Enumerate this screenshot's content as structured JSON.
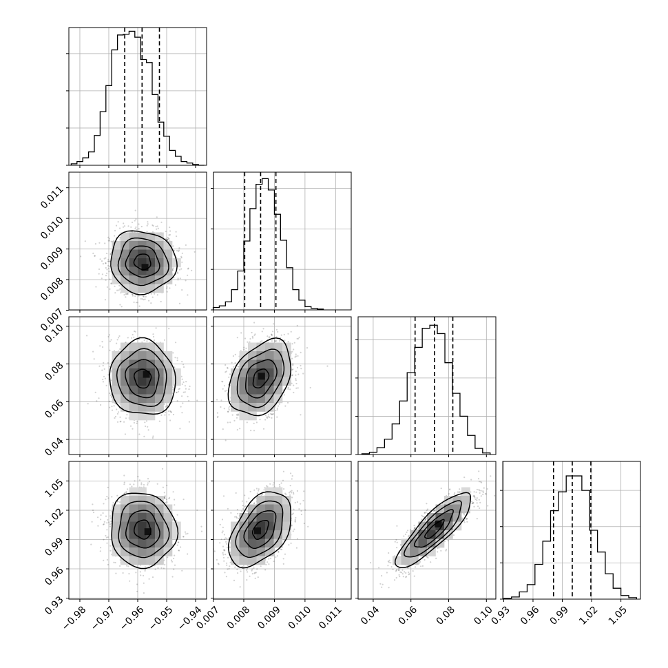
{
  "chart_data": {
    "type": "corner",
    "grid": true,
    "colors": {
      "line": "#000000",
      "grid": "#b0b0b0",
      "scatter": "#000000"
    },
    "parameters": [
      {
        "ticks": [
          -0.98,
          -0.97,
          -0.96,
          -0.95,
          -0.94
        ],
        "tick_labels": [
          "−0.98",
          "−0.97",
          "−0.96",
          "−0.95",
          "−0.94"
        ],
        "range": [
          -0.9838,
          -0.9362
        ]
      },
      {
        "ticks": [
          0.007,
          0.008,
          0.009,
          0.01,
          0.011
        ],
        "tick_labels": [
          "0.007",
          "0.008",
          "0.009",
          "0.010",
          "0.011"
        ],
        "range": [
          0.00701,
          0.01151
        ]
      },
      {
        "ticks": [
          0.04,
          0.06,
          0.08,
          0.1
        ],
        "tick_labels": [
          "0.04",
          "0.06",
          "0.08",
          "0.10"
        ],
        "range": [
          0.032,
          0.105
        ]
      },
      {
        "ticks": [
          0.93,
          0.96,
          0.99,
          1.02,
          1.05
        ],
        "tick_labels": [
          "0.93",
          "0.96",
          "0.99",
          "1.02",
          "1.05"
        ],
        "range": [
          0.929,
          1.07
        ]
      }
    ],
    "marginals": [
      {
        "param": 0,
        "bin_edges": [
          -0.983,
          -0.981,
          -0.979,
          -0.977,
          -0.975,
          -0.973,
          -0.971,
          -0.969,
          -0.967,
          -0.965,
          -0.963,
          -0.961,
          -0.959,
          -0.957,
          -0.955,
          -0.953,
          -0.951,
          -0.949,
          -0.947,
          -0.945,
          -0.943,
          -0.941,
          -0.939,
          -0.937
        ],
        "counts": [
          2,
          5,
          10,
          18,
          40,
          72,
          107,
          155,
          175,
          176,
          180,
          172,
          142,
          138,
          95,
          58,
          39,
          20,
          12,
          5,
          3,
          1,
          0
        ],
        "ylim": [
          0,
          185
        ],
        "yticks": [
          0,
          50,
          100,
          150
        ],
        "quantiles": [
          -0.9645,
          -0.9585,
          -0.9525
        ]
      },
      {
        "param": 1,
        "bin_edges": [
          0.007,
          0.0072,
          0.0074,
          0.0076,
          0.0078,
          0.008,
          0.0082,
          0.0084,
          0.0086,
          0.0088,
          0.009,
          0.0092,
          0.0094,
          0.0096,
          0.0098,
          0.01,
          0.0102,
          0.0104,
          0.0106
        ],
        "counts": [
          3,
          5,
          10,
          25,
          48,
          85,
          125,
          155,
          162,
          148,
          118,
          86,
          52,
          25,
          12,
          4,
          2,
          1
        ],
        "ylim": [
          0,
          170
        ],
        "yticks": [
          0,
          50,
          100,
          150
        ],
        "quantiles": [
          0.00803,
          0.00855,
          0.00905
        ]
      },
      {
        "param": 2,
        "bin_edges": [
          0.034,
          0.038,
          0.042,
          0.046,
          0.05,
          0.054,
          0.058,
          0.062,
          0.066,
          0.07,
          0.074,
          0.078,
          0.082,
          0.086,
          0.09,
          0.094,
          0.098,
          0.102
        ],
        "counts": [
          1,
          3,
          9,
          20,
          40,
          70,
          107,
          140,
          165,
          169,
          158,
          120,
          80,
          50,
          25,
          8,
          2
        ],
        "ylim": [
          0,
          180
        ],
        "yticks": [
          0,
          50,
          100,
          150
        ],
        "quantiles": [
          0.0622,
          0.0725,
          0.0822
        ]
      },
      {
        "param": 3,
        "bin_edges": [
          0.93,
          0.938,
          0.946,
          0.954,
          0.962,
          0.97,
          0.978,
          0.986,
          0.994,
          1.002,
          1.01,
          1.018,
          1.026,
          1.034,
          1.042,
          1.05,
          1.058,
          1.066
        ],
        "counts": [
          1,
          3,
          10,
          20,
          48,
          80,
          122,
          148,
          170,
          170,
          150,
          95,
          65,
          35,
          15,
          5,
          2
        ],
        "ylim": [
          0,
          190
        ],
        "yticks": [
          0,
          50,
          100,
          150
        ],
        "quantiles": [
          0.981,
          1.0002,
          1.0192
        ]
      }
    ],
    "joint": [
      {
        "x": 0,
        "y": 1,
        "mean": [
          -0.9583,
          0.00858
        ],
        "sd": [
          0.0057,
          0.00051
        ],
        "corr": -0.05,
        "peak": [
          -0.9575,
          0.0084
        ]
      },
      {
        "x": 0,
        "y": 2,
        "mean": [
          -0.9583,
          0.0723
        ],
        "sd": [
          0.0057,
          0.01
        ],
        "corr": -0.05,
        "peak": [
          -0.957,
          0.0745
        ]
      },
      {
        "x": 1,
        "y": 2,
        "mean": [
          0.00855,
          0.0724
        ],
        "sd": [
          0.00051,
          0.01
        ],
        "corr": 0.35,
        "peak": [
          0.00858,
          0.0735
        ]
      },
      {
        "x": 0,
        "y": 3,
        "mean": [
          -0.9583,
          1.0002
        ],
        "sd": [
          0.0057,
          0.0192
        ],
        "corr": -0.05,
        "peak": [
          -0.9565,
          0.998
        ]
      },
      {
        "x": 1,
        "y": 3,
        "mean": [
          0.00855,
          1.0002
        ],
        "sd": [
          0.00051,
          0.0192
        ],
        "corr": 0.45,
        "peak": [
          0.00845,
          0.999
        ]
      },
      {
        "x": 2,
        "y": 3,
        "mean": [
          0.0724,
          1.0002
        ],
        "sd": [
          0.01,
          0.0192
        ],
        "corr": 0.85,
        "peak": [
          0.0745,
          1.006
        ]
      }
    ],
    "contour_levels_sigma": [
      0.5,
      1.0,
      1.5,
      2.0
    ]
  }
}
